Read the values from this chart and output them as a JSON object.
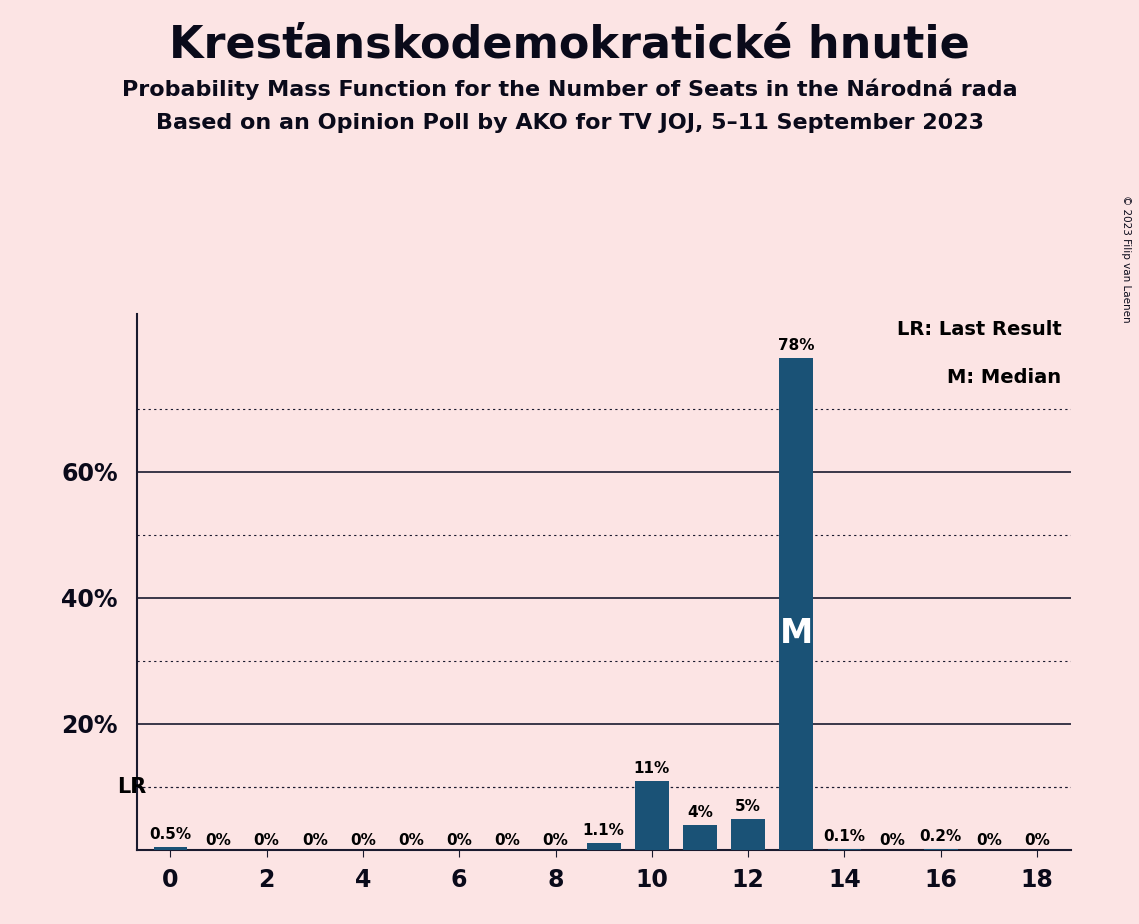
{
  "title": "Kresťanskodemokratické hnutie",
  "subtitle1": "Probability Mass Function for the Number of Seats in the Národná rada",
  "subtitle2": "Based on an Opinion Poll by AKO for TV JOJ, 5–11 September 2023",
  "copyright": "© 2023 Filip van Laenen",
  "seats": [
    0,
    1,
    2,
    3,
    4,
    5,
    6,
    7,
    8,
    9,
    10,
    11,
    12,
    13,
    14,
    15,
    16,
    17,
    18
  ],
  "probabilities": [
    0.5,
    0.0,
    0.0,
    0.0,
    0.0,
    0.0,
    0.0,
    0.0,
    0.0,
    1.1,
    11.0,
    4.0,
    5.0,
    78.0,
    0.1,
    0.0,
    0.2,
    0.0,
    0.0
  ],
  "labels": [
    "0.5%",
    "0%",
    "0%",
    "0%",
    "0%",
    "0%",
    "0%",
    "0%",
    "0%",
    "1.1%",
    "11%",
    "4%",
    "5%",
    "78%",
    "0.1%",
    "0%",
    "0.2%",
    "0%",
    "0%"
  ],
  "bar_color": "#1a5276",
  "background_color": "#fce4e4",
  "median_seat": 13,
  "lr_seat": 0,
  "lr_value": 10.0,
  "ylim": [
    0,
    85
  ],
  "xlim": [
    -0.7,
    18.7
  ],
  "xticks": [
    0,
    2,
    4,
    6,
    8,
    10,
    12,
    14,
    16,
    18
  ],
  "title_fontsize": 32,
  "subtitle_fontsize": 16,
  "bar_width": 0.7,
  "solid_lines": [
    20,
    40,
    60
  ],
  "dotted_lines": [
    10,
    30,
    50,
    70
  ],
  "lr_line_value": 10.0,
  "ytick_positions": [
    20,
    40,
    60
  ],
  "ytick_labels": [
    "20%",
    "40%",
    "60%"
  ]
}
